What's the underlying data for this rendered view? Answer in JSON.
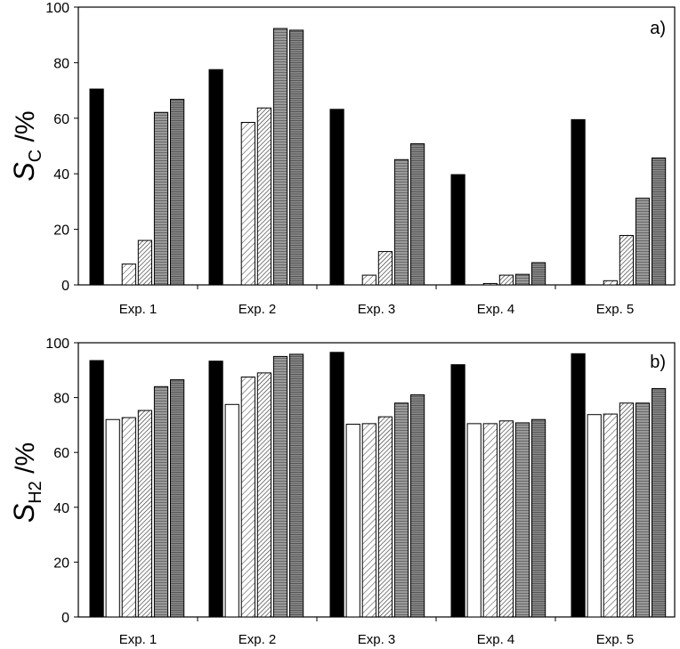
{
  "chart_data": [
    {
      "type": "bar",
      "panel_label": "a)",
      "ylabel_main": "S",
      "ylabel_sub": "C",
      "ylabel_unit": " /%",
      "categories": [
        "Exp. 1",
        "Exp. 2",
        "Exp. 3",
        "Exp. 4",
        "Exp. 5"
      ],
      "ylim": [
        0,
        100
      ],
      "yticks": [
        "0",
        "20",
        "40",
        "60",
        "80",
        "100"
      ],
      "grid": false,
      "series": [
        {
          "fill": "solid-black",
          "values": [
            70.5,
            77.5,
            63.2,
            39.7,
            59.5
          ]
        },
        {
          "fill": "white",
          "values": [
            0,
            0,
            0,
            0,
            0
          ]
        },
        {
          "fill": "diagonal-hatch-light",
          "values": [
            7.5,
            58.5,
            3.5,
            0.5,
            1.5
          ]
        },
        {
          "fill": "diagonal-hatch-dense",
          "values": [
            16.0,
            63.7,
            12.0,
            3.5,
            17.8
          ]
        },
        {
          "fill": "gray-horizontal",
          "values": [
            62.1,
            92.3,
            45.1,
            3.8,
            31.2
          ]
        },
        {
          "fill": "gray-horizontal-dark",
          "values": [
            66.8,
            91.7,
            50.8,
            8.0,
            45.7
          ]
        }
      ]
    },
    {
      "type": "bar",
      "panel_label": "b)",
      "ylabel_main": "S",
      "ylabel_sub": "H2",
      "ylabel_unit": " /%",
      "categories": [
        "Exp. 1",
        "Exp. 2",
        "Exp. 3",
        "Exp. 4",
        "Exp. 5"
      ],
      "ylim": [
        0,
        100
      ],
      "yticks": [
        "0",
        "20",
        "40",
        "60",
        "80",
        "100"
      ],
      "grid": false,
      "series": [
        {
          "fill": "solid-black",
          "values": [
            93.5,
            93.3,
            96.5,
            92.0,
            96.0
          ]
        },
        {
          "fill": "white",
          "values": [
            72.0,
            77.5,
            70.3,
            70.5,
            73.8
          ]
        },
        {
          "fill": "diagonal-hatch-light",
          "values": [
            72.7,
            87.5,
            70.5,
            70.5,
            74.0
          ]
        },
        {
          "fill": "diagonal-hatch-dense",
          "values": [
            75.3,
            89.0,
            73.0,
            71.5,
            78.0
          ]
        },
        {
          "fill": "gray-horizontal",
          "values": [
            84.0,
            95.0,
            78.0,
            70.8,
            78.0
          ]
        },
        {
          "fill": "gray-horizontal-dark",
          "values": [
            86.5,
            95.8,
            81.0,
            72.0,
            83.3
          ]
        }
      ]
    }
  ]
}
